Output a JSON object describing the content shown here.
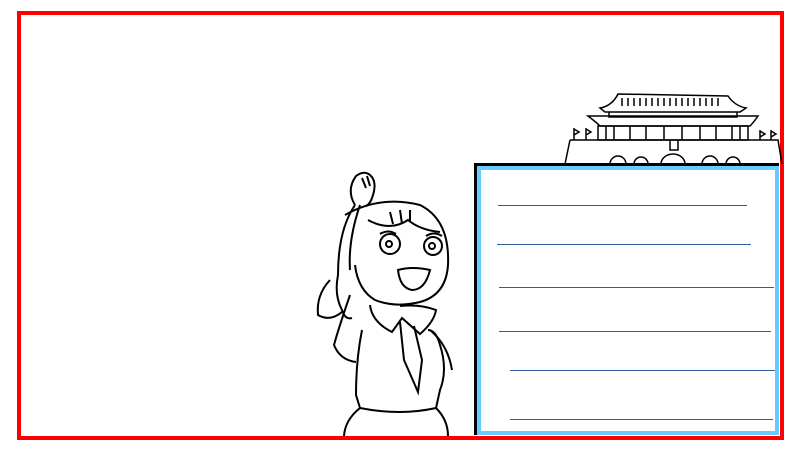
{
  "colors": {
    "frame": "#ff0000",
    "box_border": "#66ccff",
    "box_outline": "#000000",
    "rule": "#2a5f9a"
  },
  "illustrations": [
    "tiananmen-gate-icon",
    "saluting-girl-icon"
  ],
  "writing_box": {
    "ruled_lines": 6
  }
}
